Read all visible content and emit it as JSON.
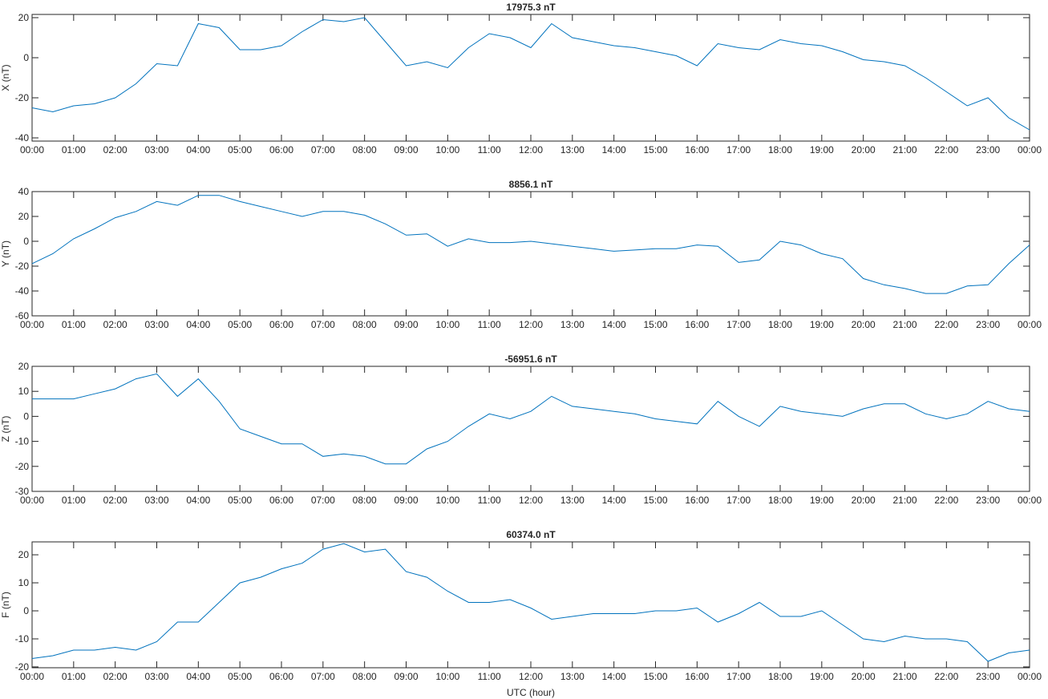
{
  "chart_data": [
    {
      "type": "line",
      "title": "17975.3 nT",
      "ylabel": "X (nT)",
      "x": [
        0,
        0.5,
        1,
        1.5,
        2,
        2.5,
        3,
        3.5,
        4,
        4.5,
        5,
        5.5,
        6,
        6.5,
        7,
        7.5,
        8,
        8.5,
        9,
        9.5,
        10,
        10.5,
        11,
        11.5,
        12,
        12.5,
        13,
        13.5,
        14,
        14.5,
        15,
        15.5,
        16,
        16.5,
        17,
        17.5,
        18,
        18.5,
        19,
        19.5,
        20,
        20.5,
        21,
        21.5,
        22,
        22.5,
        23,
        23.5,
        24
      ],
      "series": [
        {
          "name": "X",
          "color": "#0072bd",
          "values": [
            -25,
            -27,
            -24,
            -23,
            -20,
            -13,
            -3,
            -4,
            17,
            15,
            4,
            4,
            6,
            13,
            19,
            18,
            20,
            8,
            -4,
            -2,
            -5,
            5,
            12,
            10,
            5,
            17,
            10,
            8,
            6,
            5,
            3,
            1,
            -4,
            7,
            5,
            4,
            9,
            7,
            6,
            3,
            -1,
            -2,
            -4,
            -10,
            -17,
            -24,
            -20,
            -30,
            -36
          ]
        }
      ],
      "xlim": [
        0,
        24
      ],
      "ylim": [
        -41.6,
        21.6
      ],
      "yticks": [
        -40,
        -20,
        0,
        20
      ],
      "xticks": [
        {
          "value": 0,
          "label": "00:00"
        },
        {
          "value": 1,
          "label": "01:00"
        },
        {
          "value": 2,
          "label": "02:00"
        },
        {
          "value": 3,
          "label": "03:00"
        },
        {
          "value": 4,
          "label": "04:00"
        },
        {
          "value": 5,
          "label": "05:00"
        },
        {
          "value": 6,
          "label": "06:00"
        },
        {
          "value": 7,
          "label": "07:00"
        },
        {
          "value": 8,
          "label": "08:00"
        },
        {
          "value": 9,
          "label": "09:00"
        },
        {
          "value": 10,
          "label": "10:00"
        },
        {
          "value": 11,
          "label": "11:00"
        },
        {
          "value": 12,
          "label": "12:00"
        },
        {
          "value": 13,
          "label": "13:00"
        },
        {
          "value": 14,
          "label": "14:00"
        },
        {
          "value": 15,
          "label": "15:00"
        },
        {
          "value": 16,
          "label": "16:00"
        },
        {
          "value": 17,
          "label": "17:00"
        },
        {
          "value": 18,
          "label": "18:00"
        },
        {
          "value": 19,
          "label": "19:00"
        },
        {
          "value": 20,
          "label": "20:00"
        },
        {
          "value": 21,
          "label": "21:00"
        },
        {
          "value": 22,
          "label": "22:00"
        },
        {
          "value": 23,
          "label": "23:00"
        },
        {
          "value": 24,
          "label": "00:00"
        }
      ]
    },
    {
      "type": "line",
      "title": "8856.1 nT",
      "ylabel": "Y (nT)",
      "x": [
        0,
        0.5,
        1,
        1.5,
        2,
        2.5,
        3,
        3.5,
        4,
        4.5,
        5,
        5.5,
        6,
        6.5,
        7,
        7.5,
        8,
        8.5,
        9,
        9.5,
        10,
        10.5,
        11,
        11.5,
        12,
        12.5,
        13,
        13.5,
        14,
        14.5,
        15,
        15.5,
        16,
        16.5,
        17,
        17.5,
        18,
        18.5,
        19,
        19.5,
        20,
        20.5,
        21,
        21.5,
        22,
        22.5,
        23,
        23.5,
        24
      ],
      "series": [
        {
          "name": "Y",
          "color": "#0072bd",
          "values": [
            -18,
            -10,
            2,
            10,
            19,
            24,
            32,
            29,
            37,
            37,
            32,
            28,
            24,
            20,
            24,
            24,
            21,
            14,
            5,
            6,
            -4,
            2,
            -1,
            -1,
            0,
            -2,
            -4,
            -6,
            -8,
            -7,
            -6,
            -6,
            -3,
            -4,
            -17,
            -15,
            0,
            -3,
            -10,
            -14,
            -30,
            -35,
            -38,
            -42,
            -42,
            -36,
            -35,
            -18,
            -3
          ]
        }
      ],
      "xlim": [
        0,
        24
      ],
      "ylim": [
        -60,
        40
      ],
      "yticks": [
        -60,
        -40,
        -20,
        0,
        20,
        40
      ],
      "xticks": [
        {
          "value": 0,
          "label": "00:00"
        },
        {
          "value": 1,
          "label": "01:00"
        },
        {
          "value": 2,
          "label": "02:00"
        },
        {
          "value": 3,
          "label": "03:00"
        },
        {
          "value": 4,
          "label": "04:00"
        },
        {
          "value": 5,
          "label": "05:00"
        },
        {
          "value": 6,
          "label": "06:00"
        },
        {
          "value": 7,
          "label": "07:00"
        },
        {
          "value": 8,
          "label": "08:00"
        },
        {
          "value": 9,
          "label": "09:00"
        },
        {
          "value": 10,
          "label": "10:00"
        },
        {
          "value": 11,
          "label": "11:00"
        },
        {
          "value": 12,
          "label": "12:00"
        },
        {
          "value": 13,
          "label": "13:00"
        },
        {
          "value": 14,
          "label": "14:00"
        },
        {
          "value": 15,
          "label": "15:00"
        },
        {
          "value": 16,
          "label": "16:00"
        },
        {
          "value": 17,
          "label": "17:00"
        },
        {
          "value": 18,
          "label": "18:00"
        },
        {
          "value": 19,
          "label": "19:00"
        },
        {
          "value": 20,
          "label": "20:00"
        },
        {
          "value": 21,
          "label": "21:00"
        },
        {
          "value": 22,
          "label": "22:00"
        },
        {
          "value": 23,
          "label": "23:00"
        },
        {
          "value": 24,
          "label": "00:00"
        }
      ]
    },
    {
      "type": "line",
      "title": "-56951.6 nT",
      "ylabel": "Z (nT)",
      "x": [
        0,
        0.5,
        1,
        1.5,
        2,
        2.5,
        3,
        3.5,
        4,
        4.5,
        5,
        5.5,
        6,
        6.5,
        7,
        7.5,
        8,
        8.5,
        9,
        9.5,
        10,
        10.5,
        11,
        11.5,
        12,
        12.5,
        13,
        13.5,
        14,
        14.5,
        15,
        15.5,
        16,
        16.5,
        17,
        17.5,
        18,
        18.5,
        19,
        19.5,
        20,
        20.5,
        21,
        21.5,
        22,
        22.5,
        23,
        23.5,
        24
      ],
      "series": [
        {
          "name": "Z",
          "color": "#0072bd",
          "values": [
            7,
            7,
            7,
            9,
            11,
            15,
            17,
            8,
            15,
            6,
            -5,
            -8,
            -11,
            -11,
            -16,
            -15,
            -16,
            -19,
            -19,
            -13,
            -10,
            -4,
            1,
            -1,
            2,
            8,
            4,
            3,
            2,
            1,
            -1,
            -2,
            -3,
            6,
            0,
            -4,
            4,
            2,
            1,
            0,
            3,
            5,
            5,
            1,
            -1,
            1,
            6,
            3,
            2
          ]
        }
      ],
      "xlim": [
        0,
        24
      ],
      "ylim": [
        -30,
        20
      ],
      "yticks": [
        -30,
        -20,
        -10,
        0,
        10,
        20
      ],
      "xticks": [
        {
          "value": 0,
          "label": "00:00"
        },
        {
          "value": 1,
          "label": "01:00"
        },
        {
          "value": 2,
          "label": "02:00"
        },
        {
          "value": 3,
          "label": "03:00"
        },
        {
          "value": 4,
          "label": "04:00"
        },
        {
          "value": 5,
          "label": "05:00"
        },
        {
          "value": 6,
          "label": "06:00"
        },
        {
          "value": 7,
          "label": "07:00"
        },
        {
          "value": 8,
          "label": "08:00"
        },
        {
          "value": 9,
          "label": "09:00"
        },
        {
          "value": 10,
          "label": "10:00"
        },
        {
          "value": 11,
          "label": "11:00"
        },
        {
          "value": 12,
          "label": "12:00"
        },
        {
          "value": 13,
          "label": "13:00"
        },
        {
          "value": 14,
          "label": "14:00"
        },
        {
          "value": 15,
          "label": "15:00"
        },
        {
          "value": 16,
          "label": "16:00"
        },
        {
          "value": 17,
          "label": "17:00"
        },
        {
          "value": 18,
          "label": "18:00"
        },
        {
          "value": 19,
          "label": "19:00"
        },
        {
          "value": 20,
          "label": "20:00"
        },
        {
          "value": 21,
          "label": "21:00"
        },
        {
          "value": 22,
          "label": "22:00"
        },
        {
          "value": 23,
          "label": "23:00"
        },
        {
          "value": 24,
          "label": "00:00"
        }
      ]
    },
    {
      "type": "line",
      "title": "60374.0 nT",
      "ylabel": "F (nT)",
      "xlabel": "UTC (hour)",
      "x": [
        0,
        0.5,
        1,
        1.5,
        2,
        2.5,
        3,
        3.5,
        4,
        4.5,
        5,
        5.5,
        6,
        6.5,
        7,
        7.5,
        8,
        8.5,
        9,
        9.5,
        10,
        10.5,
        11,
        11.5,
        12,
        12.5,
        13,
        13.5,
        14,
        14.5,
        15,
        15.5,
        16,
        16.5,
        17,
        17.5,
        18,
        18.5,
        19,
        19.5,
        20,
        20.5,
        21,
        21.5,
        22,
        22.5,
        23,
        23.5,
        24
      ],
      "series": [
        {
          "name": "F",
          "color": "#0072bd",
          "values": [
            -17,
            -16,
            -14,
            -14,
            -13,
            -14,
            -11,
            -4,
            -4,
            3,
            10,
            12,
            15,
            17,
            22,
            24,
            21,
            22,
            14,
            12,
            7,
            3,
            3,
            4,
            1,
            -3,
            -2,
            -1,
            -1,
            -1,
            0,
            0,
            1,
            -4,
            -1,
            3,
            -2,
            -2,
            0,
            -5,
            -10,
            -11,
            -9,
            -10,
            -10,
            -11,
            -18,
            -15,
            -14
          ]
        }
      ],
      "xlim": [
        0,
        24
      ],
      "ylim": [
        -20.3,
        24.6
      ],
      "yticks": [
        -20,
        -10,
        0,
        10,
        20
      ],
      "xticks": [
        {
          "value": 0,
          "label": "00:00"
        },
        {
          "value": 1,
          "label": "01:00"
        },
        {
          "value": 2,
          "label": "02:00"
        },
        {
          "value": 3,
          "label": "03:00"
        },
        {
          "value": 4,
          "label": "04:00"
        },
        {
          "value": 5,
          "label": "05:00"
        },
        {
          "value": 6,
          "label": "06:00"
        },
        {
          "value": 7,
          "label": "07:00"
        },
        {
          "value": 8,
          "label": "08:00"
        },
        {
          "value": 9,
          "label": "09:00"
        },
        {
          "value": 10,
          "label": "10:00"
        },
        {
          "value": 11,
          "label": "11:00"
        },
        {
          "value": 12,
          "label": "12:00"
        },
        {
          "value": 13,
          "label": "13:00"
        },
        {
          "value": 14,
          "label": "14:00"
        },
        {
          "value": 15,
          "label": "15:00"
        },
        {
          "value": 16,
          "label": "16:00"
        },
        {
          "value": 17,
          "label": "17:00"
        },
        {
          "value": 18,
          "label": "18:00"
        },
        {
          "value": 19,
          "label": "19:00"
        },
        {
          "value": 20,
          "label": "20:00"
        },
        {
          "value": 21,
          "label": "21:00"
        },
        {
          "value": 22,
          "label": "22:00"
        },
        {
          "value": 23,
          "label": "23:00"
        },
        {
          "value": 24,
          "label": "00:00"
        }
      ]
    }
  ]
}
